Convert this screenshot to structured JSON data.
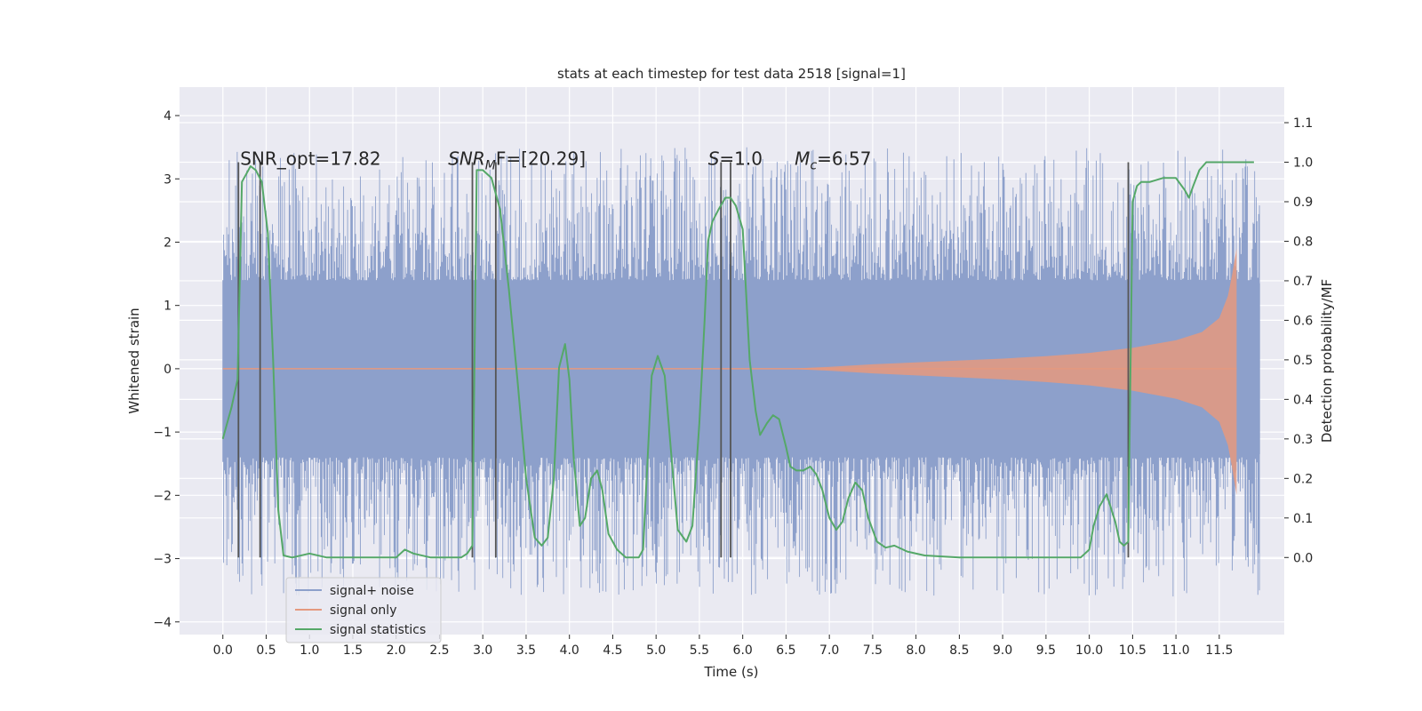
{
  "chart_data": {
    "type": "line",
    "title": "stats at each timestep for test data 2518 [signal=1]",
    "xlabel": "Time (s)",
    "ylabel_left": "Whitened strain",
    "ylabel_right": "Detection probability/MF",
    "xlim": [
      -0.5,
      12.25
    ],
    "ylim_left": [
      -4.2,
      4.45
    ],
    "ylim_right": [
      -0.195,
      1.19
    ],
    "x_ticks": [
      0.0,
      0.5,
      1.0,
      1.5,
      2.0,
      2.5,
      3.0,
      3.5,
      4.0,
      4.5,
      5.0,
      5.5,
      6.0,
      6.5,
      7.0,
      7.5,
      8.0,
      8.5,
      9.0,
      9.5,
      10.0,
      10.5,
      11.0,
      11.5
    ],
    "x_tick_labels": [
      "0.0",
      "0.5",
      "1.0",
      "1.5",
      "2.0",
      "2.5",
      "3.0",
      "3.5",
      "4.0",
      "4.5",
      "5.0",
      "5.5",
      "6.0",
      "6.5",
      "7.0",
      "7.5",
      "8.0",
      "8.5",
      "9.0",
      "9.5",
      "10.0",
      "10.5",
      "11.0",
      "11.5"
    ],
    "y_left_ticks": [
      -4,
      -3,
      -2,
      -1,
      0,
      1,
      2,
      3,
      4
    ],
    "y_left_tick_labels": [
      "−4",
      "−3",
      "−2",
      "−1",
      "0",
      "1",
      "2",
      "3",
      "4"
    ],
    "y_right_ticks": [
      0.0,
      0.1,
      0.2,
      0.3,
      0.4,
      0.5,
      0.6,
      0.7,
      0.8,
      0.9,
      1.0,
      1.1
    ],
    "y_right_tick_labels": [
      "0.0",
      "0.1",
      "0.2",
      "0.3",
      "0.4",
      "0.5",
      "0.6",
      "0.7",
      "0.8",
      "0.9",
      "1.0",
      "1.1"
    ],
    "grid": true,
    "legend_position": "lower-left",
    "series": [
      {
        "name": "signal+ noise",
        "color": "#8da0cb",
        "axis": "left",
        "x_range": [
          0.0,
          11.97
        ],
        "band_lower": -1.35,
        "band_upper": 1.35,
        "spike_envelope": [
          -3.6,
          3.5
        ]
      },
      {
        "name": "signal only",
        "color": "#e5997f",
        "axis": "left",
        "x": [
          0.0,
          6.5,
          7.0,
          7.5,
          8.0,
          8.5,
          9.0,
          9.5,
          10.0,
          10.5,
          11.0,
          11.3,
          11.5,
          11.6,
          11.65,
          11.7
        ],
        "amplitude": [
          0.0,
          0.0,
          0.03,
          0.07,
          0.1,
          0.13,
          0.16,
          0.2,
          0.25,
          0.33,
          0.45,
          0.58,
          0.8,
          1.15,
          1.5,
          1.9
        ]
      },
      {
        "name": "signal statistics",
        "color": "#55a868",
        "axis": "right",
        "x": [
          0.0,
          0.1,
          0.17,
          0.22,
          0.27,
          0.32,
          0.38,
          0.45,
          0.52,
          0.58,
          0.64,
          0.7,
          0.8,
          1.0,
          1.2,
          1.5,
          1.8,
          2.0,
          2.05,
          2.1,
          2.2,
          2.4,
          2.6,
          2.75,
          2.82,
          2.88,
          2.93,
          3.0,
          3.1,
          3.2,
          3.3,
          3.4,
          3.5,
          3.6,
          3.68,
          3.75,
          3.82,
          3.88,
          3.95,
          4.0,
          4.05,
          4.12,
          4.18,
          4.25,
          4.32,
          4.38,
          4.45,
          4.55,
          4.65,
          4.72,
          4.8,
          4.85,
          4.95,
          5.02,
          5.1,
          5.18,
          5.25,
          5.35,
          5.42,
          5.5,
          5.56,
          5.6,
          5.65,
          5.72,
          5.8,
          5.86,
          5.92,
          6.0,
          6.08,
          6.15,
          6.2,
          6.28,
          6.35,
          6.42,
          6.5,
          6.55,
          6.62,
          6.7,
          6.78,
          6.85,
          6.92,
          7.0,
          7.08,
          7.15,
          7.22,
          7.3,
          7.38,
          7.45,
          7.55,
          7.65,
          7.75,
          7.9,
          8.1,
          8.5,
          9.0,
          9.5,
          9.9,
          10.0,
          10.05,
          10.12,
          10.2,
          10.3,
          10.35,
          10.4,
          10.45,
          10.5,
          10.55,
          10.6,
          10.7,
          10.85,
          11.0,
          11.1,
          11.15,
          11.2,
          11.27,
          11.35,
          11.5,
          11.7,
          11.9
        ],
        "y": [
          0.3,
          0.38,
          0.45,
          0.95,
          0.97,
          0.99,
          0.98,
          0.95,
          0.82,
          0.5,
          0.12,
          0.005,
          0.0,
          0.01,
          0.0,
          0.0,
          0.0,
          0.0,
          0.01,
          0.02,
          0.01,
          0.0,
          0.0,
          0.0,
          0.01,
          0.03,
          0.98,
          0.98,
          0.96,
          0.88,
          0.68,
          0.45,
          0.2,
          0.05,
          0.03,
          0.05,
          0.2,
          0.48,
          0.54,
          0.45,
          0.25,
          0.08,
          0.1,
          0.2,
          0.22,
          0.17,
          0.06,
          0.02,
          0.0,
          0.0,
          0.0,
          0.02,
          0.46,
          0.51,
          0.46,
          0.25,
          0.07,
          0.04,
          0.08,
          0.34,
          0.6,
          0.8,
          0.85,
          0.88,
          0.91,
          0.91,
          0.89,
          0.83,
          0.5,
          0.37,
          0.31,
          0.34,
          0.36,
          0.35,
          0.28,
          0.23,
          0.22,
          0.22,
          0.23,
          0.21,
          0.17,
          0.1,
          0.07,
          0.09,
          0.15,
          0.19,
          0.17,
          0.1,
          0.04,
          0.025,
          0.03,
          0.015,
          0.005,
          0.0,
          0.0,
          0.0,
          0.0,
          0.02,
          0.08,
          0.13,
          0.16,
          0.09,
          0.04,
          0.03,
          0.04,
          0.9,
          0.94,
          0.95,
          0.95,
          0.96,
          0.96,
          0.93,
          0.91,
          0.94,
          0.98,
          1.0,
          1.0,
          1.0,
          1.0
        ]
      }
    ],
    "vertical_markers": [
      0.18,
      0.43,
      2.88,
      3.15,
      5.75,
      5.86,
      10.45
    ],
    "vertical_marker_color": "#555555",
    "annotations": [
      {
        "text_before": "SNR_opt=17.82",
        "text_italic": "",
        "text_sub": "",
        "text_after": "",
        "x": 0.2
      },
      {
        "text_before": "",
        "text_italic": "SNR",
        "text_sub": "M",
        "text_after": "F=[20.29]",
        "x": 2.6
      },
      {
        "text_before": "",
        "text_italic": "S",
        "text_sub": "",
        "text_after": "=1.0",
        "x": 5.6
      },
      {
        "text_before": "",
        "text_italic": "M",
        "text_sub": "c",
        "text_after": "=6.57",
        "x": 6.6
      }
    ],
    "annotation_y": 3.32,
    "legend_entries": [
      {
        "label": "signal+ noise",
        "color": "#8da0cb"
      },
      {
        "label": "signal only",
        "color": "#e5997f"
      },
      {
        "label": "signal statistics",
        "color": "#55a868"
      }
    ]
  }
}
